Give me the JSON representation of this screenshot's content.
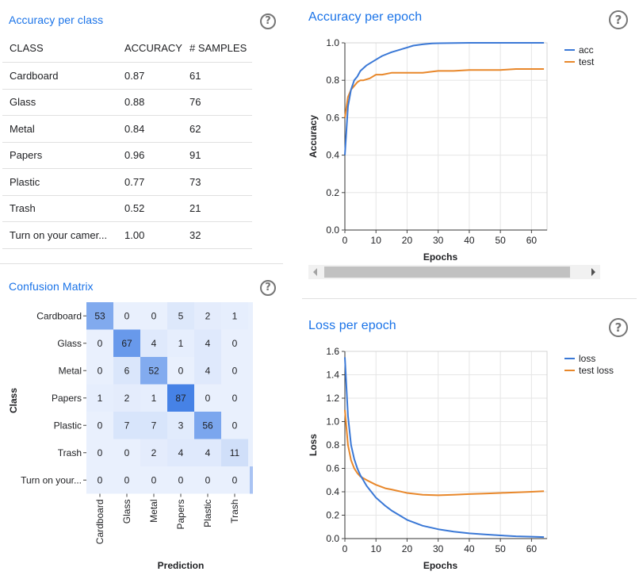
{
  "accuracy_panel": {
    "title": "Accuracy per class",
    "headers": [
      "CLASS",
      "ACCURACY",
      "# SAMPLES"
    ],
    "rows": [
      {
        "class": "Cardboard",
        "accuracy": "0.87",
        "samples": "61"
      },
      {
        "class": "Glass",
        "accuracy": "0.88",
        "samples": "76"
      },
      {
        "class": "Metal",
        "accuracy": "0.84",
        "samples": "62"
      },
      {
        "class": "Papers",
        "accuracy": "0.96",
        "samples": "91"
      },
      {
        "class": "Plastic",
        "accuracy": "0.77",
        "samples": "73"
      },
      {
        "class": "Trash",
        "accuracy": "0.52",
        "samples": "21"
      },
      {
        "class": "Turn on your camer...",
        "accuracy": "1.00",
        "samples": "32"
      }
    ]
  },
  "help_icon": "?",
  "confusion_panel": {
    "title": "Confusion Matrix",
    "ylabel": "Class",
    "xlabel": "Prediction",
    "row_labels": [
      "Cardboard",
      "Glass",
      "Metal",
      "Papers",
      "Plastic",
      "Trash",
      "Turn on your..."
    ],
    "col_labels": [
      "Cardboard",
      "Glass",
      "Metal",
      "Papers",
      "Plastic",
      "Trash"
    ],
    "values": [
      [
        53,
        0,
        0,
        5,
        2,
        1
      ],
      [
        0,
        67,
        4,
        1,
        4,
        0
      ],
      [
        0,
        6,
        52,
        0,
        4,
        0
      ],
      [
        1,
        2,
        1,
        87,
        0,
        0
      ],
      [
        0,
        7,
        7,
        3,
        56,
        0
      ],
      [
        0,
        0,
        2,
        4,
        4,
        11
      ],
      [
        0,
        0,
        0,
        0,
        0,
        0
      ]
    ]
  },
  "accuracy_epoch_panel": {
    "title": "Accuracy per epoch"
  },
  "loss_epoch_panel": {
    "title": "Loss per epoch"
  },
  "colors": {
    "acc": "#3a78d6",
    "test": "#e8872a",
    "grid": "#e6e6e6",
    "title": "#1a73e8"
  },
  "chart_data": [
    {
      "type": "line",
      "title": "Accuracy per epoch",
      "xlabel": "Epochs",
      "ylabel": "Accuracy",
      "xlim": [
        0,
        65
      ],
      "ylim": [
        0,
        1
      ],
      "xticks": [
        "0",
        "10",
        "20",
        "30",
        "40",
        "50",
        "60"
      ],
      "yticks": [
        "0.0",
        "0.2",
        "0.4",
        "0.6",
        "0.8",
        "1.0"
      ],
      "legend": "top-right",
      "grid": true,
      "series": [
        {
          "name": "acc",
          "color": "#3a78d6",
          "x": [
            0,
            1,
            2,
            3,
            4,
            5,
            7,
            10,
            12,
            15,
            18,
            20,
            22,
            25,
            28,
            30,
            35,
            40,
            50,
            60,
            64
          ],
          "y": [
            0.4,
            0.66,
            0.75,
            0.8,
            0.82,
            0.85,
            0.88,
            0.91,
            0.93,
            0.95,
            0.965,
            0.975,
            0.985,
            0.992,
            0.997,
            0.998,
            0.999,
            1.0,
            1.0,
            1.0,
            1.0
          ]
        },
        {
          "name": "test",
          "color": "#e8872a",
          "x": [
            0,
            1,
            2,
            3,
            4,
            5,
            6,
            8,
            10,
            12,
            15,
            18,
            20,
            25,
            30,
            35,
            40,
            45,
            50,
            55,
            60,
            64
          ],
          "y": [
            0.6,
            0.71,
            0.75,
            0.77,
            0.79,
            0.8,
            0.8,
            0.81,
            0.83,
            0.83,
            0.84,
            0.84,
            0.84,
            0.84,
            0.85,
            0.85,
            0.855,
            0.855,
            0.855,
            0.86,
            0.86,
            0.86
          ]
        }
      ]
    },
    {
      "type": "line",
      "title": "Loss per epoch",
      "xlabel": "Epochs",
      "ylabel": "Loss",
      "xlim": [
        0,
        65
      ],
      "ylim": [
        0,
        1.6
      ],
      "xticks": [
        "0",
        "10",
        "20",
        "30",
        "40",
        "50",
        "60"
      ],
      "yticks": [
        "0.0",
        "0.2",
        "0.4",
        "0.6",
        "0.8",
        "1.0",
        "1.2",
        "1.4",
        "1.6"
      ],
      "legend": "top-right",
      "grid": true,
      "series": [
        {
          "name": "loss",
          "color": "#3a78d6",
          "x": [
            0,
            1,
            2,
            3,
            4,
            5,
            7,
            10,
            13,
            15,
            20,
            25,
            30,
            35,
            40,
            45,
            50,
            55,
            60,
            64
          ],
          "y": [
            1.55,
            1.05,
            0.8,
            0.68,
            0.6,
            0.54,
            0.45,
            0.35,
            0.28,
            0.24,
            0.16,
            0.11,
            0.08,
            0.06,
            0.045,
            0.035,
            0.027,
            0.02,
            0.016,
            0.013
          ]
        },
        {
          "name": "test loss",
          "color": "#e8872a",
          "x": [
            0,
            1,
            2,
            3,
            4,
            5,
            7,
            10,
            13,
            15,
            20,
            25,
            30,
            35,
            40,
            45,
            50,
            55,
            60,
            64
          ],
          "y": [
            1.1,
            0.8,
            0.67,
            0.6,
            0.56,
            0.53,
            0.5,
            0.46,
            0.43,
            0.42,
            0.39,
            0.375,
            0.37,
            0.375,
            0.38,
            0.385,
            0.39,
            0.395,
            0.4,
            0.405
          ]
        }
      ]
    }
  ]
}
